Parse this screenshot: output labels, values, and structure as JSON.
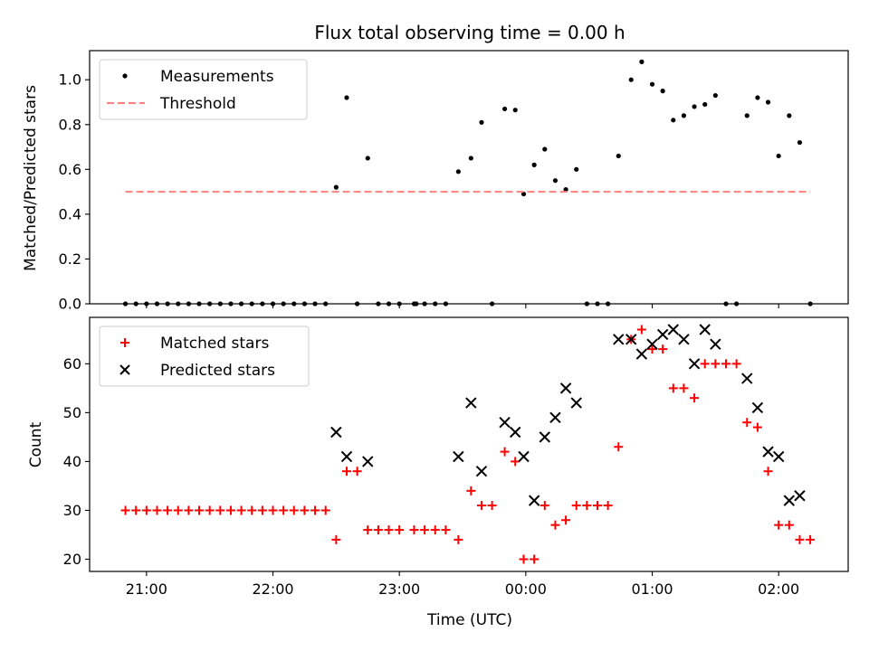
{
  "chart_data": [
    {
      "type": "scatter",
      "title": "Flux total observing time = 0.00 h",
      "xlabel": "",
      "ylabel": "Matched/Predicted stars",
      "xlim": [
        "20:33",
        "02:33"
      ],
      "ylim": [
        0,
        1.13
      ],
      "y_ticks": [
        "0.0",
        "0.2",
        "0.4",
        "0.6",
        "0.8",
        "1.0"
      ],
      "y_tick_values": [
        0,
        0.2,
        0.4,
        0.6,
        0.8,
        1.0
      ],
      "x_ticks": [
        "21:00",
        "22:00",
        "23:00",
        "00:00",
        "01:00",
        "02:00"
      ],
      "legend_position": "upper-left",
      "series": [
        {
          "name": "Measurements",
          "marker": "dot",
          "color": "#000000",
          "points": [
            [
              "20:50",
              0
            ],
            [
              "20:55",
              0
            ],
            [
              "21:00",
              0
            ],
            [
              "21:05",
              0
            ],
            [
              "21:10",
              0
            ],
            [
              "21:15",
              0
            ],
            [
              "21:20",
              0
            ],
            [
              "21:25",
              0
            ],
            [
              "21:30",
              0
            ],
            [
              "21:35",
              0
            ],
            [
              "21:40",
              0
            ],
            [
              "21:45",
              0
            ],
            [
              "21:50",
              0
            ],
            [
              "21:55",
              0
            ],
            [
              "22:00",
              0
            ],
            [
              "22:05",
              0
            ],
            [
              "22:10",
              0
            ],
            [
              "22:15",
              0
            ],
            [
              "22:20",
              0
            ],
            [
              "22:25",
              0
            ],
            [
              "22:30",
              0.52
            ],
            [
              "22:35",
              0.92
            ],
            [
              "22:40",
              0
            ],
            [
              "22:45",
              0.65
            ],
            [
              "22:50",
              0
            ],
            [
              "22:55",
              0
            ],
            [
              "23:00",
              0
            ],
            [
              "23:07",
              0
            ],
            [
              "23:08",
              0
            ],
            [
              "23:12",
              0
            ],
            [
              "23:17",
              0
            ],
            [
              "23:22",
              0
            ],
            [
              "23:28",
              0.59
            ],
            [
              "23:34",
              0.65
            ],
            [
              "23:39",
              0.81
            ],
            [
              "23:44",
              0
            ],
            [
              "23:50",
              0.87
            ],
            [
              "23:55",
              0.865
            ],
            [
              "23:59",
              0.49
            ],
            [
              "00:04",
              0.62
            ],
            [
              "00:09",
              0.69
            ],
            [
              "00:14",
              0.55
            ],
            [
              "00:19",
              0.51
            ],
            [
              "00:24",
              0.6
            ],
            [
              "00:29",
              0
            ],
            [
              "00:34",
              0
            ],
            [
              "00:39",
              0
            ],
            [
              "00:44",
              0.66
            ],
            [
              "00:50",
              1.0
            ],
            [
              "00:55",
              1.08
            ],
            [
              "01:00",
              0.98
            ],
            [
              "01:05",
              0.95
            ],
            [
              "01:10",
              0.82
            ],
            [
              "01:15",
              0.84
            ],
            [
              "01:20",
              0.88
            ],
            [
              "01:25",
              0.89
            ],
            [
              "01:30",
              0.93
            ],
            [
              "01:35",
              0
            ],
            [
              "01:40",
              0
            ],
            [
              "01:45",
              0.84
            ],
            [
              "01:50",
              0.92
            ],
            [
              "01:55",
              0.9
            ],
            [
              "02:00",
              0.66
            ],
            [
              "02:05",
              0.84
            ],
            [
              "02:10",
              0.72
            ],
            [
              "02:15",
              0
            ]
          ]
        },
        {
          "name": "Threshold",
          "marker": "dashed-line",
          "color": "#ff7f7f",
          "points": [
            [
              "20:50",
              0.5
            ],
            [
              "02:15",
              0.5
            ]
          ]
        }
      ]
    },
    {
      "type": "scatter",
      "title": "",
      "xlabel": "Time (UTC)",
      "ylabel": "Count",
      "xlim": [
        "20:33",
        "02:33"
      ],
      "ylim": [
        17.5,
        69.5
      ],
      "y_ticks": [
        "20",
        "30",
        "40",
        "50",
        "60"
      ],
      "y_tick_values": [
        20,
        30,
        40,
        50,
        60
      ],
      "x_ticks": [
        "21:00",
        "22:00",
        "23:00",
        "00:00",
        "01:00",
        "02:00"
      ],
      "legend_position": "upper-left",
      "series": [
        {
          "name": "Matched stars",
          "marker": "plus",
          "color": "#ff0000",
          "points": [
            [
              "20:50",
              30
            ],
            [
              "20:55",
              30
            ],
            [
              "21:00",
              30
            ],
            [
              "21:05",
              30
            ],
            [
              "21:10",
              30
            ],
            [
              "21:15",
              30
            ],
            [
              "21:20",
              30
            ],
            [
              "21:25",
              30
            ],
            [
              "21:30",
              30
            ],
            [
              "21:35",
              30
            ],
            [
              "21:40",
              30
            ],
            [
              "21:45",
              30
            ],
            [
              "21:50",
              30
            ],
            [
              "21:55",
              30
            ],
            [
              "22:00",
              30
            ],
            [
              "22:05",
              30
            ],
            [
              "22:10",
              30
            ],
            [
              "22:15",
              30
            ],
            [
              "22:20",
              30
            ],
            [
              "22:25",
              30
            ],
            [
              "22:30",
              24
            ],
            [
              "22:35",
              38
            ],
            [
              "22:40",
              38
            ],
            [
              "22:45",
              26
            ],
            [
              "22:50",
              26
            ],
            [
              "22:55",
              26
            ],
            [
              "23:00",
              26
            ],
            [
              "23:07",
              26
            ],
            [
              "23:12",
              26
            ],
            [
              "23:17",
              26
            ],
            [
              "23:22",
              26
            ],
            [
              "23:28",
              24
            ],
            [
              "23:34",
              34
            ],
            [
              "23:39",
              31
            ],
            [
              "23:44",
              31
            ],
            [
              "23:50",
              42
            ],
            [
              "23:55",
              40
            ],
            [
              "23:59",
              20
            ],
            [
              "00:04",
              20
            ],
            [
              "00:09",
              31
            ],
            [
              "00:14",
              27
            ],
            [
              "00:19",
              28
            ],
            [
              "00:24",
              31
            ],
            [
              "00:29",
              31
            ],
            [
              "00:34",
              31
            ],
            [
              "00:39",
              31
            ],
            [
              "00:44",
              43
            ],
            [
              "00:50",
              65
            ],
            [
              "00:55",
              67
            ],
            [
              "01:00",
              63
            ],
            [
              "01:05",
              63
            ],
            [
              "01:10",
              55
            ],
            [
              "01:15",
              55
            ],
            [
              "01:20",
              53
            ],
            [
              "01:25",
              60
            ],
            [
              "01:30",
              60
            ],
            [
              "01:35",
              60
            ],
            [
              "01:40",
              60
            ],
            [
              "01:45",
              48
            ],
            [
              "01:50",
              47
            ],
            [
              "01:55",
              38
            ],
            [
              "02:00",
              27
            ],
            [
              "02:05",
              27
            ],
            [
              "02:10",
              24
            ],
            [
              "02:15",
              24
            ]
          ]
        },
        {
          "name": "Predicted stars",
          "marker": "x",
          "color": "#000000",
          "points": [
            [
              "22:30",
              46
            ],
            [
              "22:35",
              41
            ],
            [
              "22:45",
              40
            ],
            [
              "23:28",
              41
            ],
            [
              "23:34",
              52
            ],
            [
              "23:39",
              38
            ],
            [
              "23:50",
              48
            ],
            [
              "23:55",
              46
            ],
            [
              "23:59",
              41
            ],
            [
              "00:04",
              32
            ],
            [
              "00:09",
              45
            ],
            [
              "00:14",
              49
            ],
            [
              "00:19",
              55
            ],
            [
              "00:24",
              52
            ],
            [
              "00:44",
              65
            ],
            [
              "00:50",
              65
            ],
            [
              "00:55",
              62
            ],
            [
              "01:00",
              64
            ],
            [
              "01:05",
              66
            ],
            [
              "01:10",
              67
            ],
            [
              "01:15",
              65
            ],
            [
              "01:20",
              60
            ],
            [
              "01:25",
              67
            ],
            [
              "01:30",
              64
            ],
            [
              "01:45",
              57
            ],
            [
              "01:50",
              51
            ],
            [
              "01:55",
              42
            ],
            [
              "02:00",
              41
            ],
            [
              "02:05",
              32
            ],
            [
              "02:10",
              33
            ]
          ]
        }
      ]
    }
  ]
}
